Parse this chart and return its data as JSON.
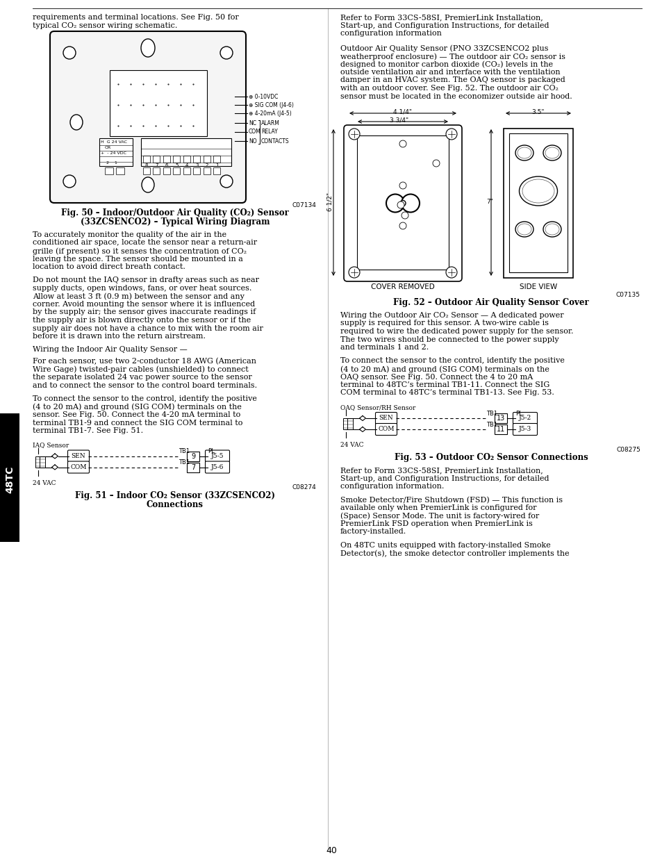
{
  "page_number": "40",
  "bg_color": "#ffffff",
  "left_col": {
    "intro": "requirements and terminal locations. See Fig. 50 for\ntypical CO₂ sensor wiring schematic.",
    "fig50_code": "C07134",
    "fig50_cap1": "Fig. 50 – Indoor/Outdoor Air Quality (CO₂) Sensor",
    "fig50_cap2": "(33ZCSENCO2) – Typical Wiring Diagram",
    "p1_lines": [
      "To accurately monitor the quality of the air in the",
      "conditioned air space, locate the sensor near a return-air",
      "grille (if present) so it senses the concentration of CO₂",
      "leaving the space. The sensor should be mounted in a",
      "location to avoid direct breath contact."
    ],
    "p2_lines": [
      "Do not mount the IAQ sensor in drafty areas such as near",
      "supply ducts, open windows, fans, or over heat sources.",
      "Allow at least 3 ft (0.9 m) between the sensor and any",
      "corner. Avoid mounting the sensor where it is influenced",
      "by the supply air; the sensor gives inaccurate readings if",
      "the supply air is blown directly onto the sensor or if the",
      "supply air does not have a chance to mix with the room air",
      "before it is drawn into the return airstream."
    ],
    "h1": "Wiring the Indoor Air Quality Sensor —",
    "p3_lines": [
      "For each sensor, use two 2-conductor 18 AWG (American",
      "Wire Gage) twisted-pair cables (unshielded) to connect",
      "the separate isolated 24 vac power source to the sensor",
      "and to connect the sensor to the control board terminals."
    ],
    "p4_lines": [
      "To connect the sensor to the control, identify the positive",
      "(4 to 20 mA) and ground (SIG COM) terminals on the",
      "sensor. See Fig. 50. Connect the 4-20 mA terminal to",
      "terminal TB1-9 and connect the SIG COM terminal to",
      "terminal TB1-7. See Fig. 51."
    ],
    "iaq_label": "IAQ Sensor",
    "vac_label": "24 VAC",
    "fig51_code": "C08274",
    "fig51_cap1": "Fig. 51 – Indoor CO₂ Sensor (33ZCSENCO2)",
    "fig51_cap2": "Connections"
  },
  "right_col": {
    "p1_lines": [
      "Refer to Form 33CS-58SI, PremierLink Installation,",
      "Start-up, and Configuration Instructions, for detailed",
      "configuration information"
    ],
    "p2_lines": [
      "Outdoor Air Quality Sensor (PNO 33ZCSENCO2 plus",
      "weatherproof enclosure) — The outdoor air CO₂ sensor is",
      "designed to monitor carbon dioxide (CO₂) levels in the",
      "outside ventilation air and interface with the ventilation",
      "damper in an HVAC system. The OAQ sensor is packaged",
      "with an outdoor cover. See Fig. 52. The outdoor air CO₂",
      "sensor must be located in the economizer outside air hood."
    ],
    "fig52_dim1": "4 1/4\"",
    "fig52_dim2": "3 3/4\"",
    "fig52_dim3": "3.5\"",
    "fig52_dim4": "6 1/2\"",
    "fig52_dim5": "7\"",
    "fig52_label1": "COVER REMOVED",
    "fig52_label2": "SIDE VIEW",
    "fig52_code": "C07135",
    "fig52_cap": "Fig. 52 – Outdoor Air Quality Sensor Cover",
    "p3_lines": [
      "Wiring the Outdoor Air CO₂ Sensor — A dedicated power",
      "supply is required for this sensor. A two-wire cable is",
      "required to wire the dedicated power supply for the sensor.",
      "The two wires should be connected to the power supply",
      "and terminals 1 and 2."
    ],
    "p4_lines": [
      "To connect the sensor to the control, identify the positive",
      "(4 to 20 mA) and ground (SIG COM) terminals on the",
      "OAQ sensor. See Fig. 50. Connect the 4 to 20 mA",
      "terminal to 48TC’s terminal TB1-11. Connect the SIG",
      "COM terminal to 48TC’s terminal TB1-13. See Fig. 53."
    ],
    "oaq_label": "OAQ Sensor/RH Sensor",
    "vac_label": "24 VAC",
    "fig53_code": "C08275",
    "fig53_cap1": "Fig. 53 – Outdoor CO₂ Sensor Connections",
    "p5_lines": [
      "Refer to Form 33CS-58SI, PremierLink Installation,",
      "Start-up, and Configuration Instructions, for detailed",
      "configuration information."
    ],
    "p6_lines": [
      "Smoke Detector/Fire Shutdown (FSD) — This function is",
      "available only when PremierLink is configured for",
      "(Space) Sensor Mode. The unit is factory-wired for",
      "PremierLink FSD operation when PremierLink is",
      "factory-installed."
    ],
    "p7_lines": [
      "On 48TC units equipped with factory-installed Smoke",
      "Detector(s), the smoke detector controller implements the"
    ]
  }
}
